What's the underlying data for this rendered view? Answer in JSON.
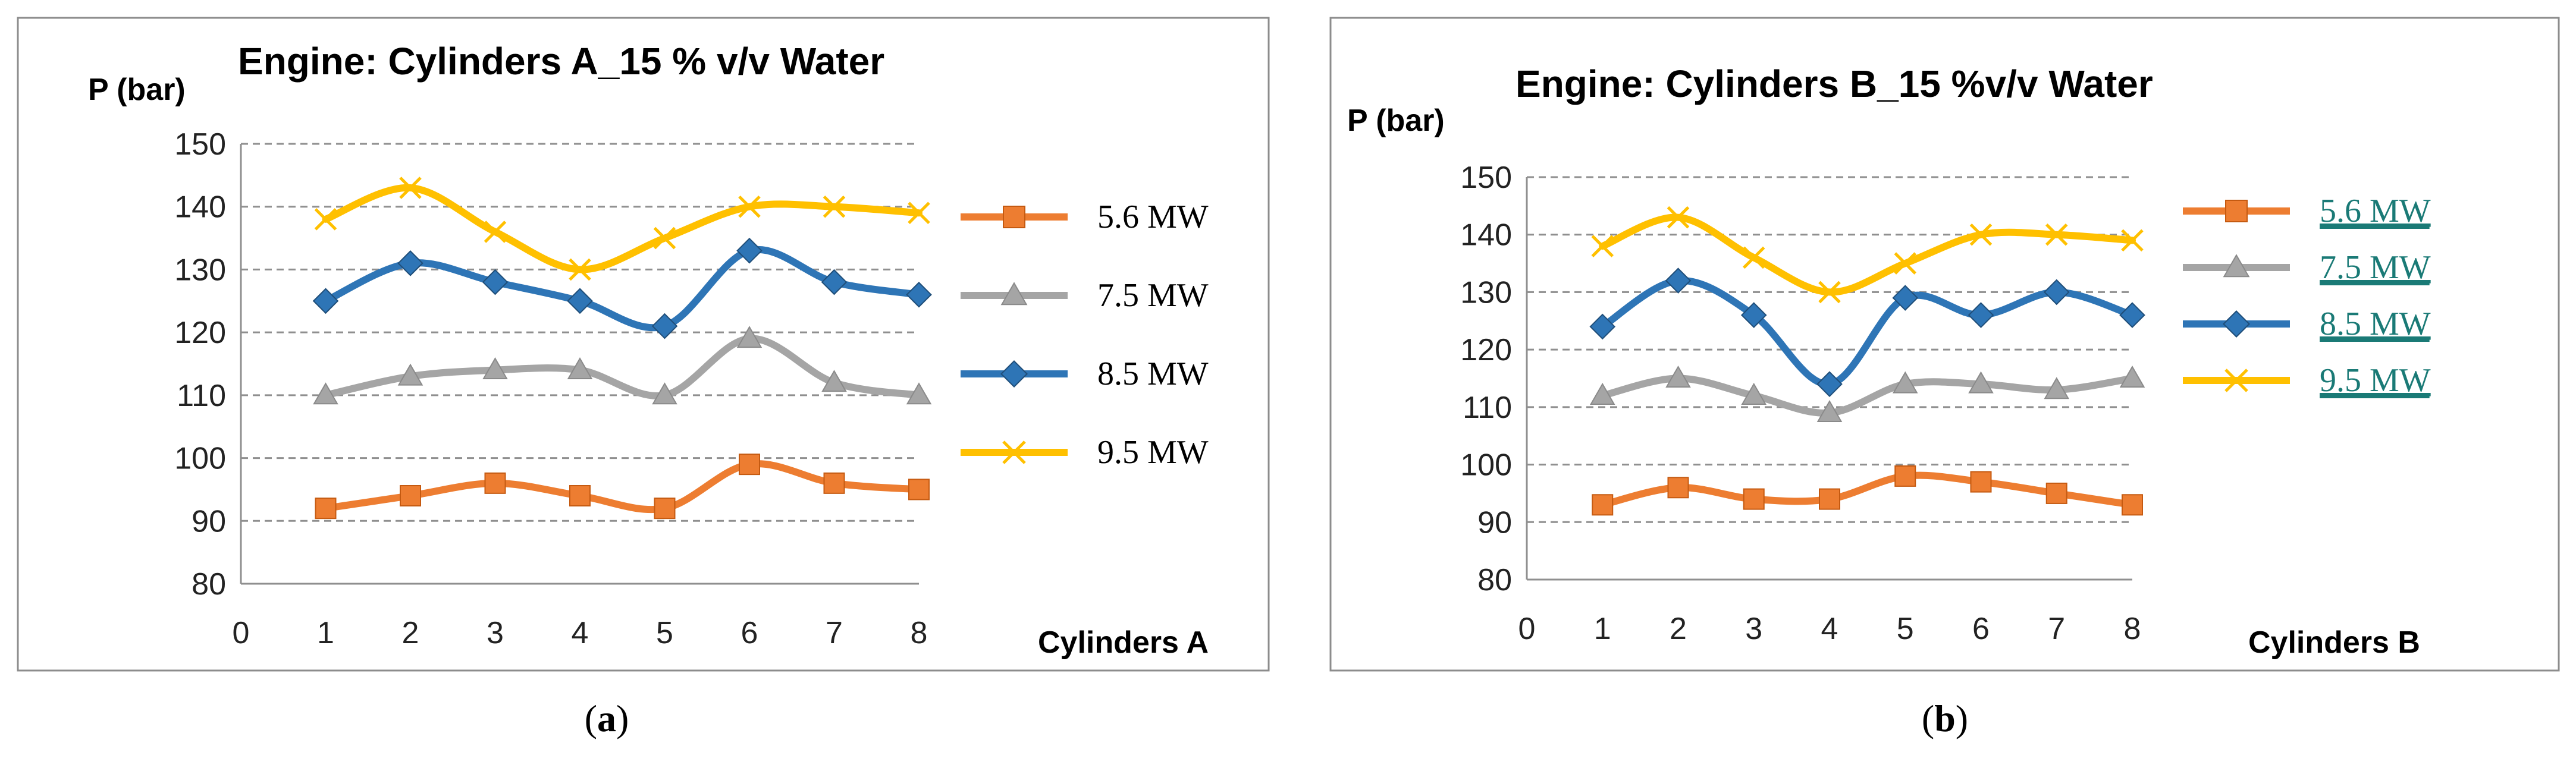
{
  "chart_data": [
    {
      "type": "line",
      "title": "Engine: Cylinders A_15 % v/v Water",
      "ylabel": "P (bar)",
      "xlabel": "Cylinders A",
      "caption_letter": "a",
      "x": [
        1,
        2,
        3,
        4,
        5,
        6,
        7,
        8
      ],
      "x_ticks": [
        "0",
        "1",
        "2",
        "3",
        "4",
        "5",
        "6",
        "7",
        "8"
      ],
      "xlim": [
        0,
        8
      ],
      "y_ticks": [
        "80",
        "90",
        "100",
        "110",
        "120",
        "130",
        "140",
        "150"
      ],
      "ylim": [
        80,
        150
      ],
      "series": [
        {
          "name": "5.6 MW",
          "color": "#ed7d31",
          "marker": "square",
          "values": [
            92,
            94,
            96,
            94,
            92,
            99,
            96,
            95
          ]
        },
        {
          "name": "7.5 MW",
          "color": "#a5a5a5",
          "marker": "triangle",
          "values": [
            110,
            113,
            114,
            114,
            110,
            119,
            112,
            110
          ]
        },
        {
          "name": "8.5 MW",
          "color": "#2e75b6",
          "marker": "diamond",
          "values": [
            125,
            131,
            128,
            125,
            121,
            133,
            128,
            126
          ]
        },
        {
          "name": "9.5 MW",
          "color": "#ffc000",
          "marker": "x",
          "values": [
            138,
            143,
            136,
            130,
            135,
            140,
            140,
            139
          ]
        }
      ]
    },
    {
      "type": "line",
      "title": "Engine: Cylinders B_15 %v/v Water",
      "ylabel": "P (bar)",
      "xlabel": "Cylinders B",
      "caption_letter": "b",
      "x": [
        1,
        2,
        3,
        4,
        5,
        6,
        7,
        8
      ],
      "x_ticks": [
        "0",
        "1",
        "2",
        "3",
        "4",
        "5",
        "6",
        "7",
        "8"
      ],
      "xlim": [
        0,
        8
      ],
      "y_ticks": [
        "80",
        "90",
        "100",
        "110",
        "120",
        "130",
        "140",
        "150"
      ],
      "ylim": [
        80,
        150
      ],
      "series": [
        {
          "name": "5.6 MW",
          "color": "#ed7d31",
          "marker": "square",
          "values": [
            93,
            96,
            94,
            94,
            98,
            97,
            95,
            93
          ]
        },
        {
          "name": "7.5 MW",
          "color": "#a5a5a5",
          "marker": "triangle",
          "values": [
            112,
            115,
            112,
            109,
            114,
            114,
            113,
            115
          ]
        },
        {
          "name": "8.5 MW",
          "color": "#2e75b6",
          "marker": "diamond",
          "values": [
            124,
            132,
            126,
            114,
            129,
            126,
            130,
            126
          ]
        },
        {
          "name": "9.5 MW",
          "color": "#ffc000",
          "marker": "x",
          "values": [
            138,
            143,
            136,
            130,
            135,
            140,
            140,
            139
          ]
        }
      ]
    }
  ]
}
